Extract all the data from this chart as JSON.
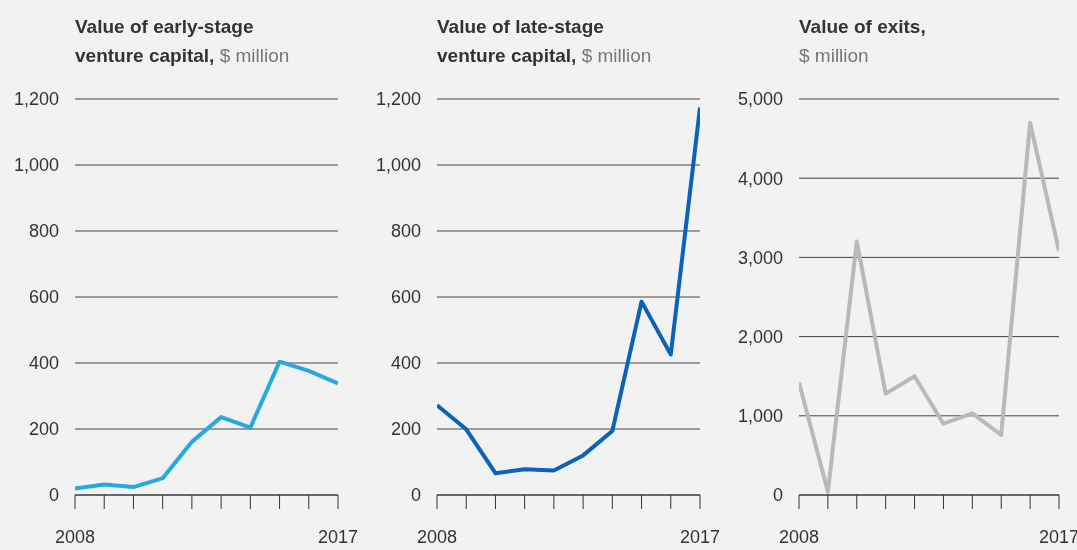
{
  "chart_data": [
    {
      "type": "line",
      "title": "Value of early-stage venture capital,",
      "subtitle": "$ million",
      "x": [
        2008,
        2009,
        2010,
        2011,
        2012,
        2013,
        2014,
        2015,
        2016,
        2017
      ],
      "series": [
        {
          "color": "#29a8e0",
          "values": [
            20,
            32,
            24,
            51,
            161,
            236,
            204,
            404,
            376,
            338
          ]
        }
      ],
      "xlim": [
        2008,
        2017
      ],
      "xticks": [
        {
          "value": 2008,
          "label": "2008"
        },
        {
          "value": 2009,
          "label": null
        },
        {
          "value": 2010,
          "label": null
        },
        {
          "value": 2011,
          "label": null
        },
        {
          "value": 2012,
          "label": null
        },
        {
          "value": 2013,
          "label": null
        },
        {
          "value": 2014,
          "label": null
        },
        {
          "value": 2015,
          "label": null
        },
        {
          "value": 2016,
          "label": null
        },
        {
          "value": 2017,
          "label": "2017"
        }
      ],
      "ylim": [
        0,
        1200
      ],
      "yticks": [
        0,
        200,
        400,
        600,
        800,
        {
          "value": 1000,
          "label": "1,000"
        },
        {
          "value": 1200,
          "label": "1,200"
        }
      ],
      "grid": "y",
      "legend": false,
      "marker": "none",
      "line_style": "solid"
    },
    {
      "type": "line",
      "title": "Value of late-stage venture capital,",
      "subtitle": "$ million",
      "x": [
        2008,
        2009,
        2010,
        2011,
        2012,
        2013,
        2014,
        2015,
        2016,
        2017
      ],
      "series": [
        {
          "color": "#0a63b8",
          "values": [
            272,
            199,
            66,
            78,
            74,
            120,
            194,
            586,
            426,
            1174
          ]
        }
      ],
      "xlim": [
        2008,
        2017
      ],
      "xticks": [
        {
          "value": 2008,
          "label": "2008"
        },
        {
          "value": 2009,
          "label": null
        },
        {
          "value": 2010,
          "label": null
        },
        {
          "value": 2011,
          "label": null
        },
        {
          "value": 2012,
          "label": null
        },
        {
          "value": 2013,
          "label": null
        },
        {
          "value": 2014,
          "label": null
        },
        {
          "value": 2015,
          "label": null
        },
        {
          "value": 2016,
          "label": null
        },
        {
          "value": 2017,
          "label": "2017"
        }
      ],
      "ylim": [
        0,
        1200
      ],
      "yticks": [
        0,
        200,
        400,
        600,
        800,
        {
          "value": 1000,
          "label": "1,000"
        },
        {
          "value": 1200,
          "label": "1,200"
        }
      ],
      "grid": "y",
      "legend": false,
      "marker": "none",
      "line_style": "solid"
    },
    {
      "type": "line",
      "title": "Value of exits,",
      "subtitle": "$ million",
      "x": [
        2008,
        2009,
        2010,
        2011,
        2012,
        2013,
        2014,
        2015,
        2016,
        2017
      ],
      "series": [
        {
          "color": "#b9b9b9",
          "values": [
            1420,
            40,
            3200,
            1280,
            1500,
            900,
            1030,
            760,
            4700,
            3080
          ]
        }
      ],
      "xlim": [
        2008,
        2017
      ],
      "xticks": [
        {
          "value": 2008,
          "label": "2008"
        },
        {
          "value": 2009,
          "label": null
        },
        {
          "value": 2010,
          "label": null
        },
        {
          "value": 2011,
          "label": null
        },
        {
          "value": 2012,
          "label": null
        },
        {
          "value": 2013,
          "label": null
        },
        {
          "value": 2014,
          "label": null
        },
        {
          "value": 2015,
          "label": null
        },
        {
          "value": 2016,
          "label": null
        },
        {
          "value": 2017,
          "label": "2017"
        }
      ],
      "ylim": [
        0,
        5000
      ],
      "yticks": [
        0,
        {
          "value": 1000,
          "label": "1,000"
        },
        {
          "value": 2000,
          "label": "2,000"
        },
        {
          "value": 3000,
          "label": "3,000"
        },
        {
          "value": 4000,
          "label": "4,000"
        },
        {
          "value": 5000,
          "label": "5,000"
        }
      ],
      "grid": "y",
      "legend": false,
      "marker": "none",
      "line_style": "solid"
    }
  ]
}
